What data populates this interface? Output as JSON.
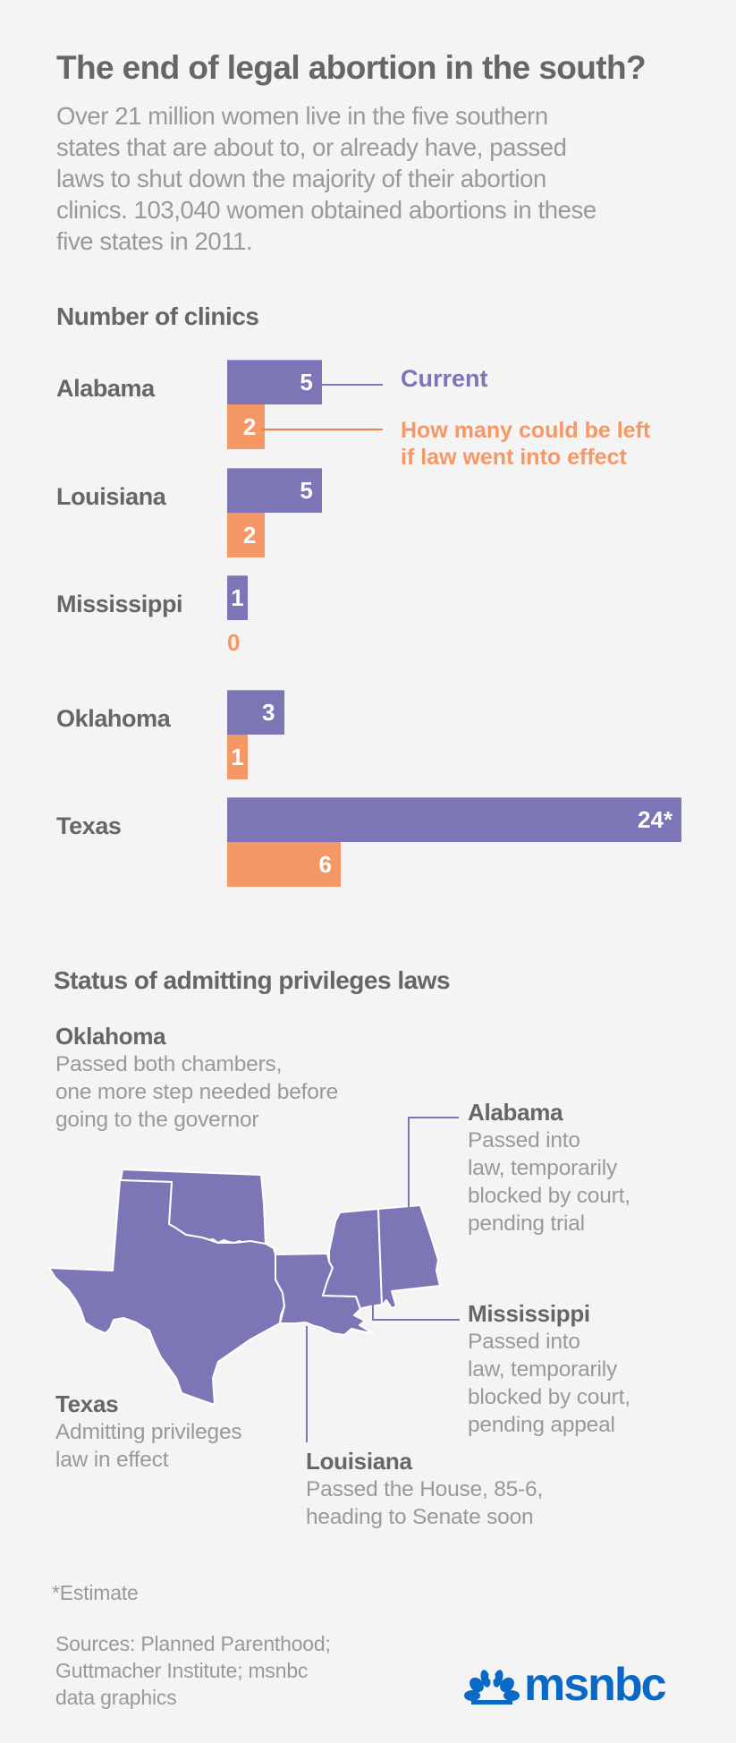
{
  "header": {
    "title": "The end of legal abortion in the south?",
    "intro_lines": [
      "Over 21 million women live in the five southern",
      "states that are about to, or already have, passed",
      "laws to shut down the majority of their abortion",
      "clinics. 103,040 women obtained abortions in these",
      "five states in 2011."
    ]
  },
  "colors": {
    "current": "#7d76b6",
    "after": "#f69766",
    "heading": "#666666",
    "body": "#999999",
    "brand": "#0a69c7",
    "background": "#f4f4f4"
  },
  "chart_data": {
    "type": "bar",
    "orientation": "horizontal",
    "title": "Number of clinics",
    "categories": [
      "Alabama",
      "Louisiana",
      "Mississippi",
      "Oklahoma",
      "Texas"
    ],
    "series": [
      {
        "name": "Current",
        "values": [
          5,
          5,
          1,
          3,
          24
        ],
        "labels": [
          "5",
          "5",
          "1",
          "3",
          "24*"
        ]
      },
      {
        "name": "How many could be left if law went into effect",
        "values": [
          2,
          2,
          0,
          1,
          6
        ],
        "labels": [
          "2",
          "2",
          "0",
          "1",
          "6"
        ]
      }
    ],
    "legend": {
      "current": "Current",
      "after_lines": [
        "How many could be left",
        "if law went into effect"
      ],
      "placement": "right"
    },
    "xlabel": "",
    "ylabel": "",
    "xlim": [
      0,
      24
    ],
    "grid": false
  },
  "map_section": {
    "title": "Status of admitting privileges laws",
    "states": [
      {
        "key": "oklahoma",
        "name": "Oklahoma",
        "lines": [
          "Passed both chambers,",
          "one more step needed before",
          "going to the governor"
        ]
      },
      {
        "key": "alabama",
        "name": "Alabama",
        "lines": [
          "Passed into",
          "law, temporarily",
          "blocked by court,",
          "pending trial"
        ]
      },
      {
        "key": "mississippi",
        "name": "Mississippi",
        "lines": [
          "Passed into",
          "law, temporarily",
          "blocked by court,",
          "pending appeal"
        ]
      },
      {
        "key": "texas",
        "name": "Texas",
        "lines": [
          "Admitting privileges",
          "law in effect"
        ]
      },
      {
        "key": "louisiana",
        "name": "Louisiana",
        "lines": [
          "Passed the House, 85-6,",
          "heading to Senate soon"
        ]
      }
    ]
  },
  "footer": {
    "note": "*Estimate",
    "sources_lines": [
      "Sources: Planned Parenthood;",
      "Guttmacher Institute; msnbc",
      "data graphics"
    ],
    "logo_text": "msnbc",
    "logo_icon": "peacock-icon"
  }
}
